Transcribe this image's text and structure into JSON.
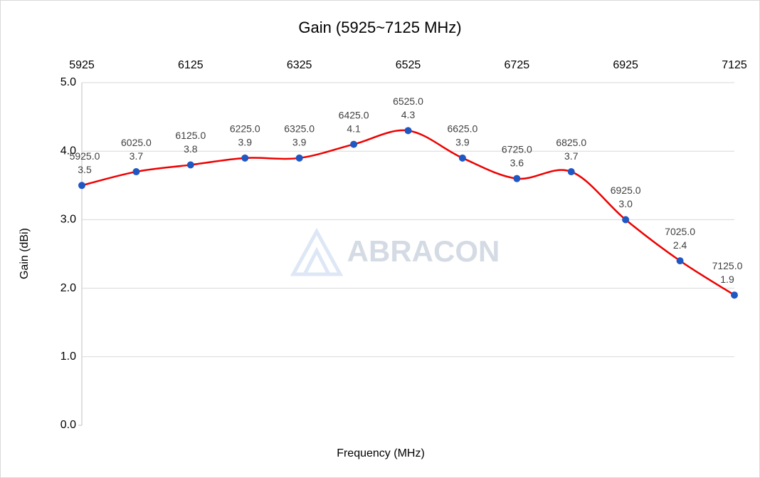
{
  "chart_data": {
    "type": "line",
    "title": "Gain (5925~7125 MHz)",
    "x_label": "Frequency (MHz)",
    "y_label": "Gain (dBi)",
    "watermark": "ABRACON",
    "x": [
      5925,
      6025,
      6125,
      6225,
      6325,
      6425,
      6525,
      6625,
      6725,
      6825,
      6925,
      7025,
      7125
    ],
    "x_value_labels": [
      "5925.0",
      "6025.0",
      "6125.0",
      "6225.0",
      "6325.0",
      "6425.0",
      "6525.0",
      "6625.0",
      "6725.0",
      "6825.0",
      "6925.0",
      "7025.0",
      "7125.0"
    ],
    "series": [
      {
        "name": "Gain",
        "color": "#ee0000",
        "marker_color": "#1f57c3",
        "values": [
          3.5,
          3.7,
          3.8,
          3.9,
          3.9,
          4.1,
          4.3,
          3.9,
          3.6,
          3.7,
          3.0,
          2.4,
          1.9
        ],
        "value_labels": [
          "3.5",
          "3.7",
          "3.8",
          "3.9",
          "3.9",
          "4.1",
          "4.3",
          "3.9",
          "3.6",
          "3.7",
          "3.0",
          "2.4",
          "1.9"
        ]
      }
    ],
    "xlim": [
      5925,
      7125
    ],
    "xticks": [
      5925,
      6125,
      6325,
      6525,
      6725,
      6925,
      7125
    ],
    "ylim": [
      0,
      5
    ],
    "yticks": [
      {
        "value": 0,
        "label": "0.0"
      },
      {
        "value": 1,
        "label": "1.0"
      },
      {
        "value": 2,
        "label": "2.0"
      },
      {
        "value": 3,
        "label": "3.0"
      },
      {
        "value": 4,
        "label": "4.0"
      },
      {
        "value": 5,
        "label": "5.0"
      }
    ],
    "grid": true,
    "smooth": true
  }
}
